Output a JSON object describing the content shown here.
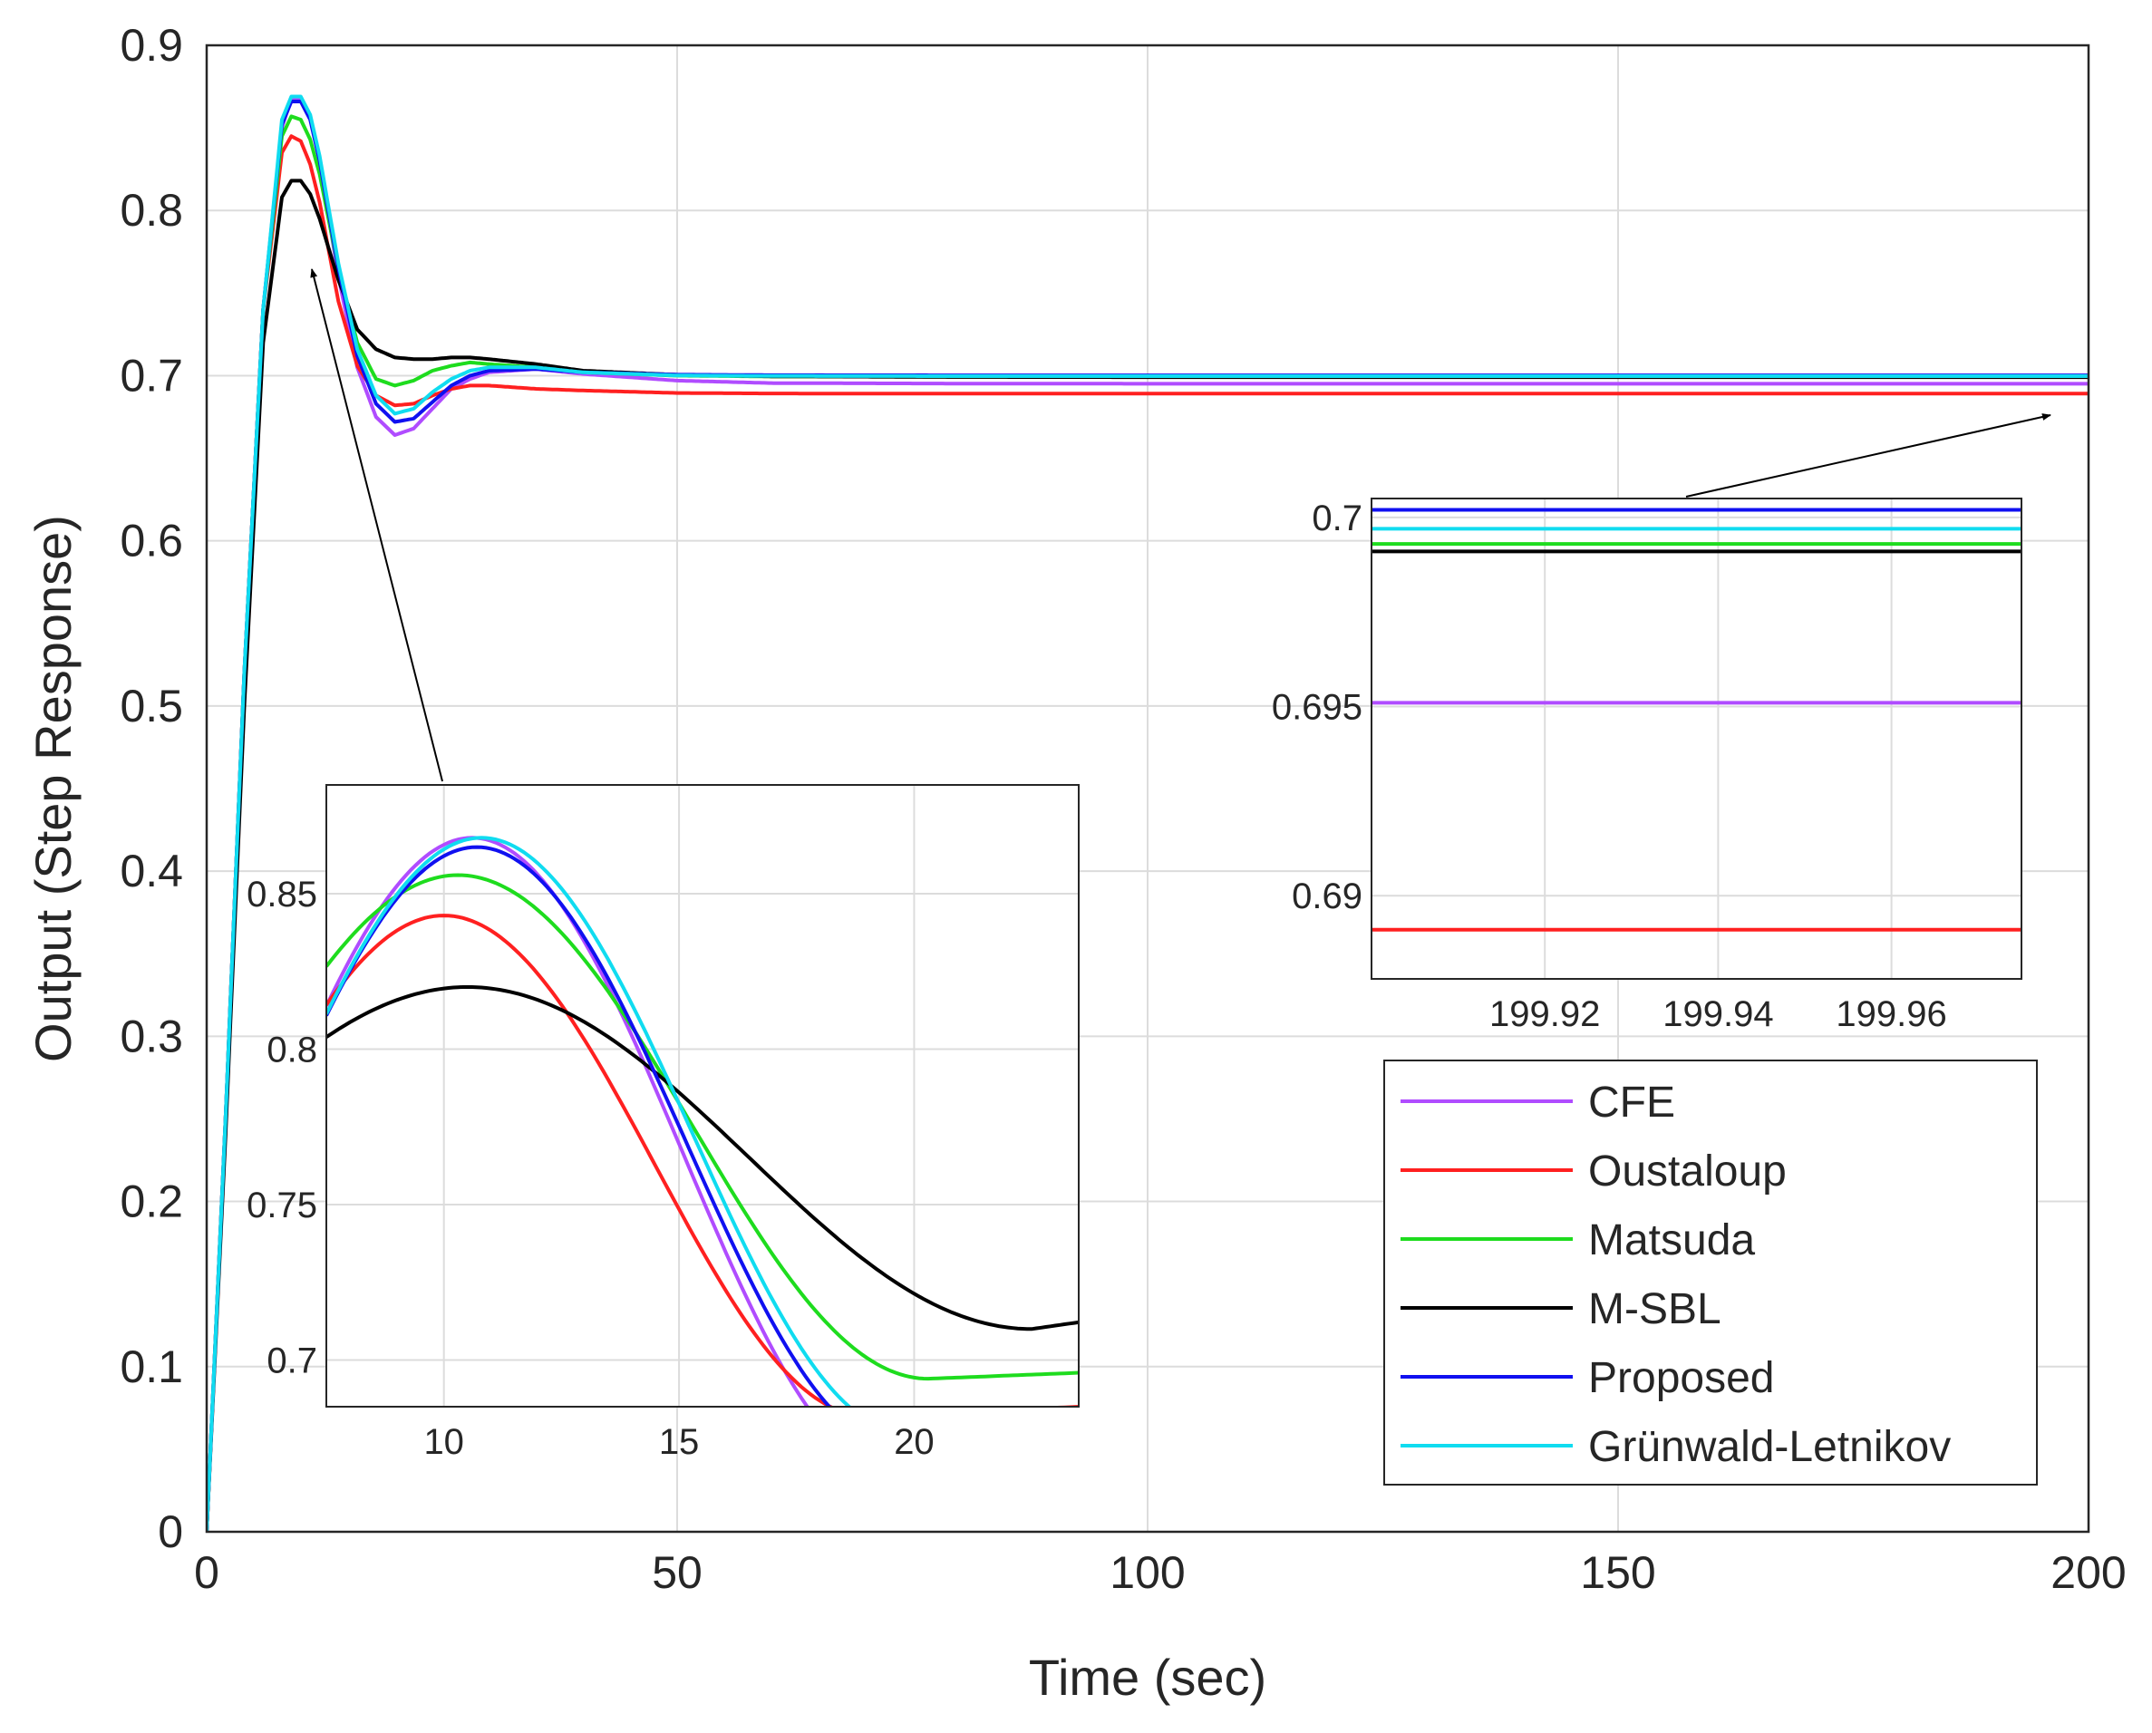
{
  "chart_data": {
    "type": "line",
    "title": "",
    "xlabel": "Time (sec)",
    "ylabel": "Output (Step Response)",
    "xlim": [
      0,
      200
    ],
    "ylim": [
      0,
      0.9
    ],
    "xticks": [
      "0",
      "50",
      "100",
      "150",
      "200"
    ],
    "yticks": [
      "0",
      "0.1",
      "0.2",
      "0.3",
      "0.4",
      "0.5",
      "0.6",
      "0.7",
      "0.8",
      "0.9"
    ],
    "grid": true,
    "legend_position": "bottom-right",
    "series": [
      {
        "name": "CFE",
        "color": "#b04cff",
        "x": [
          0,
          2,
          4,
          6,
          8,
          9,
          10,
          11,
          12,
          14,
          16,
          18,
          20,
          22,
          24,
          26,
          28,
          30,
          35,
          40,
          50,
          60,
          80,
          100,
          150,
          200
        ],
        "y": [
          0,
          0.25,
          0.52,
          0.74,
          0.85,
          0.868,
          0.868,
          0.856,
          0.83,
          0.76,
          0.705,
          0.675,
          0.664,
          0.668,
          0.68,
          0.692,
          0.698,
          0.702,
          0.704,
          0.701,
          0.697,
          0.6955,
          0.6952,
          0.6951,
          0.6951,
          0.6951
        ]
      },
      {
        "name": "Oustaloup",
        "color": "#ff2020",
        "x": [
          0,
          2,
          4,
          6,
          8,
          9,
          10,
          11,
          12,
          14,
          16,
          18,
          20,
          22,
          24,
          26,
          28,
          30,
          35,
          40,
          50,
          60,
          80,
          100,
          150,
          200
        ],
        "y": [
          0,
          0.25,
          0.52,
          0.74,
          0.835,
          0.845,
          0.842,
          0.828,
          0.805,
          0.745,
          0.706,
          0.688,
          0.682,
          0.683,
          0.688,
          0.692,
          0.694,
          0.694,
          0.692,
          0.691,
          0.6895,
          0.6892,
          0.6891,
          0.6891,
          0.6891,
          0.6891
        ]
      },
      {
        "name": "Matsuda",
        "color": "#1edc1e",
        "x": [
          0,
          2,
          4,
          6,
          8,
          9,
          10,
          11,
          12,
          14,
          16,
          18,
          20,
          22,
          24,
          26,
          28,
          30,
          35,
          40,
          50,
          60,
          80,
          100,
          150,
          200
        ],
        "y": [
          0,
          0.25,
          0.52,
          0.74,
          0.845,
          0.857,
          0.855,
          0.843,
          0.822,
          0.765,
          0.72,
          0.698,
          0.694,
          0.697,
          0.703,
          0.706,
          0.708,
          0.707,
          0.705,
          0.702,
          0.7,
          0.6995,
          0.6993,
          0.6993,
          0.6993,
          0.6993
        ]
      },
      {
        "name": "M-SBL",
        "color": "#000000",
        "x": [
          0,
          2,
          4,
          6,
          8,
          9,
          10,
          11,
          12,
          14,
          16,
          18,
          20,
          22,
          24,
          26,
          28,
          30,
          35,
          40,
          50,
          60,
          80,
          100,
          150,
          200
        ],
        "y": [
          0,
          0.24,
          0.5,
          0.72,
          0.808,
          0.818,
          0.818,
          0.81,
          0.795,
          0.758,
          0.728,
          0.716,
          0.711,
          0.71,
          0.71,
          0.711,
          0.711,
          0.71,
          0.707,
          0.703,
          0.7005,
          0.6996,
          0.6992,
          0.6991,
          0.6991,
          0.6991
        ]
      },
      {
        "name": "Proposed",
        "color": "#1010f0",
        "x": [
          0,
          2,
          4,
          6,
          8,
          9,
          10,
          11,
          12,
          14,
          16,
          18,
          20,
          22,
          24,
          26,
          28,
          30,
          35,
          40,
          50,
          60,
          80,
          100,
          150,
          200
        ],
        "y": [
          0,
          0.25,
          0.52,
          0.74,
          0.852,
          0.866,
          0.866,
          0.855,
          0.83,
          0.765,
          0.712,
          0.683,
          0.672,
          0.674,
          0.684,
          0.694,
          0.7,
          0.703,
          0.704,
          0.702,
          0.7006,
          0.7003,
          0.7002,
          0.7002,
          0.7002,
          0.7002
        ]
      },
      {
        "name": "Grünwald-Letnikov",
        "color": "#10dcf0",
        "x": [
          0,
          2,
          4,
          6,
          8,
          9,
          10,
          11,
          12,
          14,
          16,
          18,
          20,
          22,
          24,
          26,
          28,
          30,
          35,
          40,
          50,
          60,
          80,
          100,
          150,
          200
        ],
        "y": [
          0,
          0.25,
          0.52,
          0.74,
          0.855,
          0.869,
          0.869,
          0.858,
          0.833,
          0.768,
          0.716,
          0.688,
          0.677,
          0.68,
          0.69,
          0.698,
          0.703,
          0.705,
          0.705,
          0.702,
          0.7001,
          0.6998,
          0.6997,
          0.6997,
          0.6997,
          0.6997
        ]
      }
    ],
    "insets": [
      {
        "name": "peak-zoom",
        "xlim": [
          7.5,
          23.5
        ],
        "ylim": [
          0.685,
          0.885
        ],
        "xticks": [
          "10",
          "15",
          "20"
        ],
        "xtick_values": [
          10,
          15,
          20
        ],
        "yticks": [
          "0.7",
          "0.75",
          "0.8",
          "0.85"
        ],
        "ytick_values": [
          0.7,
          0.75,
          0.8,
          0.85
        ],
        "points_to": [
          11,
          0.82
        ]
      },
      {
        "name": "steady-state-zoom",
        "xlim": [
          199.9,
          199.975
        ],
        "ylim": [
          0.6878,
          0.7005
        ],
        "xticks": [
          "199.92",
          "199.94",
          "199.96"
        ],
        "xtick_values": [
          199.92,
          199.94,
          199.96
        ],
        "yticks": [
          "0.69",
          "0.695",
          "0.7"
        ],
        "ytick_values": [
          0.69,
          0.695,
          0.7
        ],
        "points_to": [
          200,
          0.69
        ]
      }
    ]
  }
}
